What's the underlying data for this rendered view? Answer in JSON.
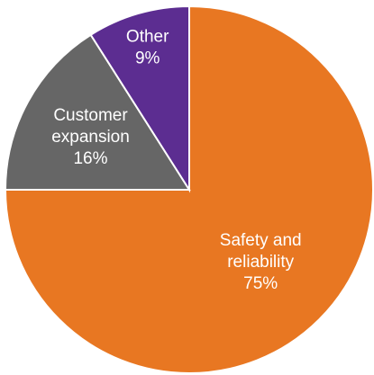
{
  "chart_data": {
    "type": "pie",
    "title": "",
    "start_angle_deg": 0,
    "direction": "clockwise",
    "slices": [
      {
        "category": "Safety and reliability",
        "label_lines": [
          "Safety and",
          "reliability",
          "75%"
        ],
        "value": 75,
        "color": "#E87722"
      },
      {
        "category": "Customer expansion",
        "label_lines": [
          "Customer",
          "expansion",
          "16%"
        ],
        "value": 16,
        "color": "#666666"
      },
      {
        "category": "Other",
        "label_lines": [
          "Other",
          "9%"
        ],
        "value": 9,
        "color": "#5C2D91"
      }
    ]
  }
}
